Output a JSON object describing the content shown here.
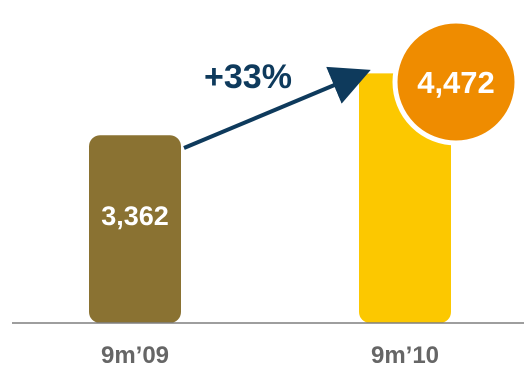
{
  "chart_data": {
    "type": "bar",
    "categories": [
      "9m’09",
      "9m’10"
    ],
    "values": [
      3362,
      4472
    ],
    "value_labels": [
      "3,362",
      "4,472"
    ],
    "growth_label": "+33%",
    "ylim": [
      0,
      4800
    ],
    "title": "",
    "xlabel": "",
    "ylabel": ""
  },
  "colors": {
    "bar_1": "#8a7232",
    "bar_2": "#fcc800",
    "badge": "#ef8c00",
    "badge_border": "#ffffff",
    "arrow": "#0e3a5c",
    "baseline": "#7f7f7f",
    "category_text": "#666666"
  }
}
